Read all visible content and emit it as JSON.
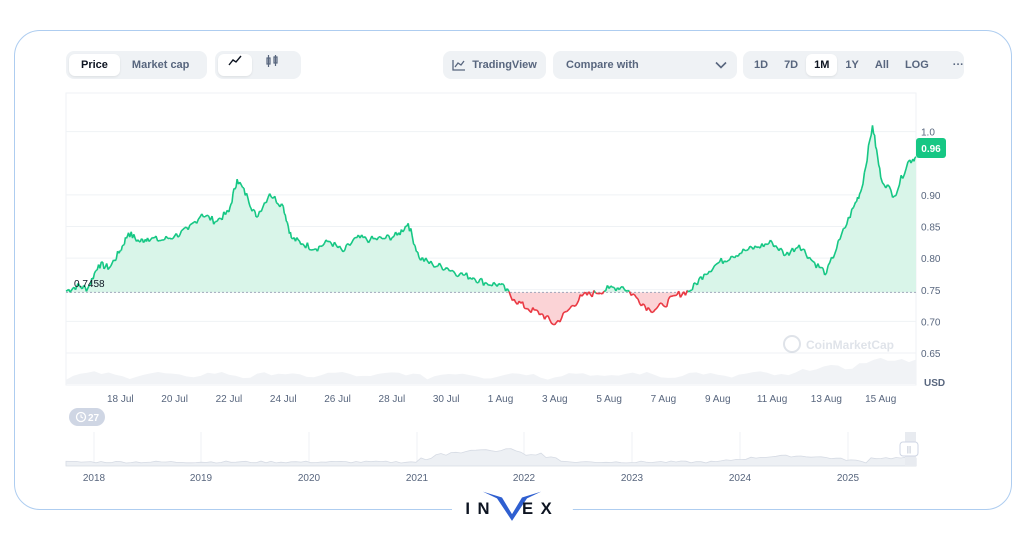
{
  "toolbar": {
    "tabs": [
      "Price",
      "Market cap"
    ],
    "active_tab": "Price",
    "chart_type_icons": [
      "line-chart-icon",
      "candlestick-icon"
    ],
    "tradingview_label": "TradingView",
    "compare_label": "Compare with",
    "ranges": [
      "1D",
      "7D",
      "1M",
      "1Y",
      "All",
      "LOG"
    ],
    "active_range": "1M",
    "more_label": "···"
  },
  "chart_meta": {
    "current_price_label": "0.96",
    "baseline_label": "0.7458",
    "currency_label": "USD",
    "watermark": "CoinMarketCap",
    "history_badge": "27",
    "colors": {
      "up": "#16c784",
      "down": "#ea3943",
      "up_fill": "#d6f5e8",
      "down_fill": "#fbd3d6",
      "badge_bg": "#16c784"
    }
  },
  "chart_data": {
    "type": "area",
    "baseline": 0.7458,
    "ylim": [
      0.62,
      1.05
    ],
    "y_ticks": [
      "1.0",
      "0.90",
      "0.85",
      "0.80",
      "0.75",
      "0.70",
      "0.65"
    ],
    "y_tick_values": [
      1.0,
      0.9,
      0.85,
      0.8,
      0.75,
      0.7,
      0.65
    ],
    "x_ticks": [
      "18 Jul",
      "20 Jul",
      "22 Jul",
      "24 Jul",
      "26 Jul",
      "28 Jul",
      "30 Jul",
      "1 Aug",
      "3 Aug",
      "5 Aug",
      "7 Aug",
      "9 Aug",
      "11 Aug",
      "13 Aug",
      "15 Aug"
    ],
    "x_tick_days": [
      2,
      4,
      6,
      8,
      10,
      12,
      14,
      16,
      18,
      20,
      22,
      24,
      26,
      28,
      30
    ],
    "xlim_days": [
      0,
      31.3
    ],
    "series": [
      {
        "x_days": [
          0,
          0.4,
          0.8,
          1.2,
          1.6,
          2.0,
          2.3,
          2.7,
          3.0,
          3.5,
          4.0,
          4.5,
          5.0,
          5.5,
          6.0,
          6.3,
          6.7,
          7.0,
          7.5,
          8.0,
          8.3,
          8.7,
          9.2,
          9.7,
          10.2,
          10.7,
          11.2,
          11.7,
          12.2,
          12.6,
          13.0,
          13.5,
          14.0,
          14.5,
          15.0,
          15.5,
          16.0,
          16.5,
          17.0,
          17.5,
          18.0,
          18.5,
          19.0,
          19.5,
          20.0,
          20.5,
          21.0,
          21.5,
          22.0,
          22.5,
          23.0,
          23.5,
          24.0,
          24.5,
          25.0,
          25.5,
          26.0,
          26.5,
          27.0,
          27.5,
          28.0,
          28.5,
          29.0,
          29.3,
          29.7,
          30.0,
          30.5,
          31.0,
          31.3
        ],
        "values": [
          0.748,
          0.756,
          0.752,
          0.79,
          0.785,
          0.812,
          0.84,
          0.826,
          0.832,
          0.828,
          0.835,
          0.845,
          0.87,
          0.858,
          0.873,
          0.925,
          0.895,
          0.865,
          0.902,
          0.882,
          0.832,
          0.823,
          0.815,
          0.827,
          0.81,
          0.832,
          0.829,
          0.831,
          0.836,
          0.855,
          0.801,
          0.79,
          0.785,
          0.775,
          0.769,
          0.76,
          0.758,
          0.735,
          0.72,
          0.712,
          0.695,
          0.718,
          0.74,
          0.745,
          0.752,
          0.755,
          0.738,
          0.718,
          0.725,
          0.742,
          0.749,
          0.775,
          0.792,
          0.803,
          0.812,
          0.818,
          0.825,
          0.805,
          0.821,
          0.795,
          0.776,
          0.83,
          0.88,
          0.91,
          1.01,
          0.928,
          0.898,
          0.952,
          0.96
        ]
      }
    ]
  },
  "navigator": {
    "years": [
      "2018",
      "2019",
      "2020",
      "2021",
      "2022",
      "2023",
      "2024",
      "2025"
    ],
    "handle_label": "||"
  },
  "brand": {
    "left": "IN",
    "right": "EX",
    "accent_color": "#2f5fd0"
  }
}
